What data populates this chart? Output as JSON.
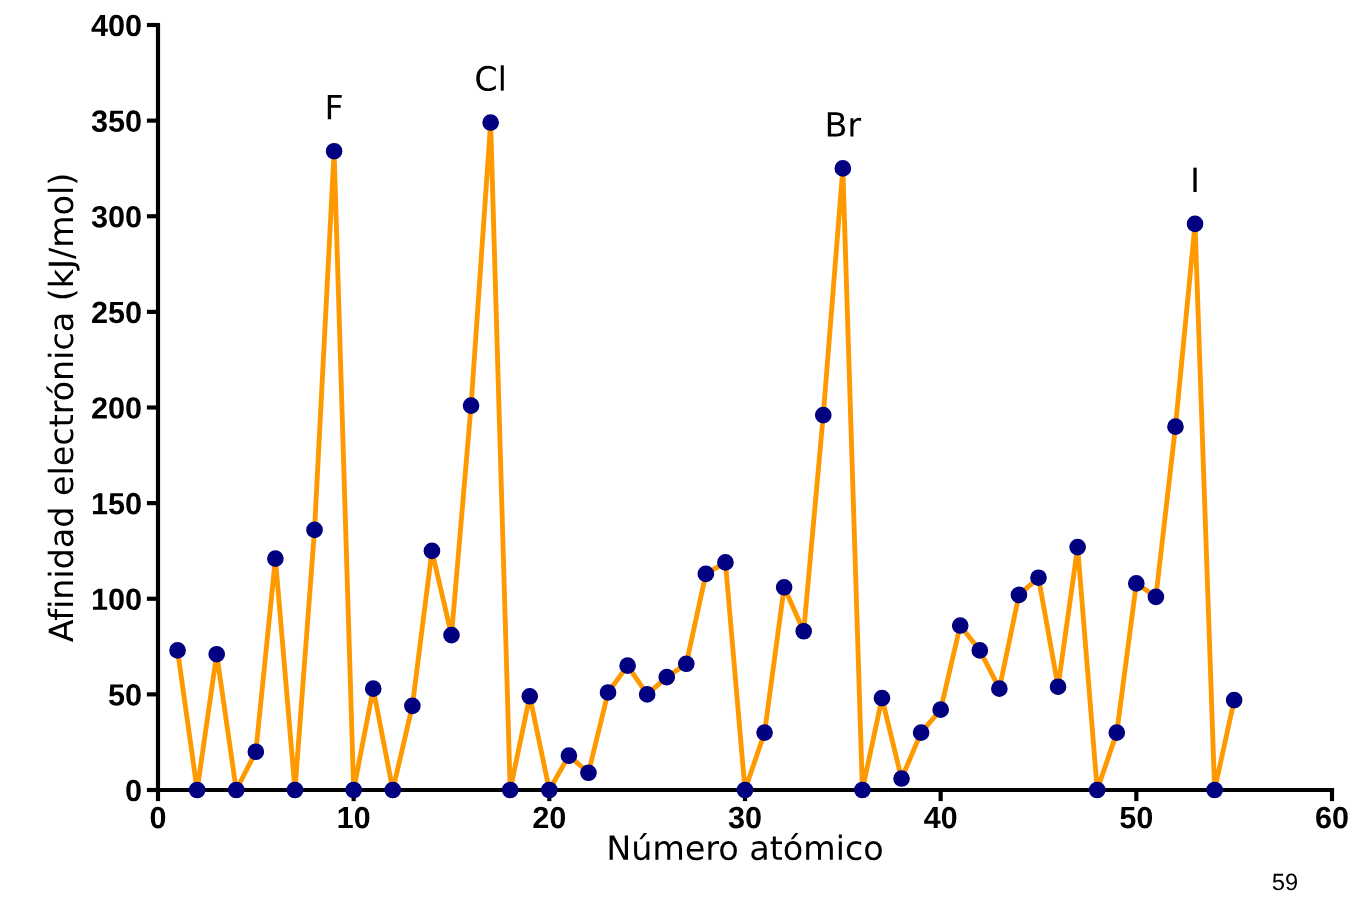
{
  "chart_data": {
    "type": "line",
    "xlabel": "Número atómico",
    "ylabel": "Afinidad electrónica (kJ/mol)",
    "x": [
      1,
      2,
      3,
      4,
      5,
      6,
      7,
      8,
      9,
      10,
      11,
      12,
      13,
      14,
      15,
      16,
      17,
      18,
      19,
      20,
      21,
      22,
      23,
      24,
      25,
      26,
      27,
      28,
      29,
      30,
      31,
      32,
      33,
      34,
      35,
      36,
      37,
      38,
      39,
      40,
      41,
      42,
      43,
      44,
      45,
      46,
      47,
      48,
      49,
      50,
      51,
      52,
      53,
      54,
      55
    ],
    "series": [
      {
        "color": "#ff9900",
        "colors": [
          "#000080",
          "#000080",
          "#000080",
          "#000080",
          "#000080",
          "#000080",
          "#000080",
          "#000080",
          "#000080",
          "#000080",
          "#000080",
          "#000080",
          "#000080",
          "#000080",
          "#000080",
          "#000080",
          "#000080",
          "#000080",
          "#000080",
          "#000080",
          "#000080",
          "#000080",
          "#000080",
          "#000080",
          "#000080",
          "#000080",
          "#000080",
          "#000080",
          "#000080",
          "#000080",
          "#000080",
          "#000080",
          "#000080",
          "#000080",
          "#000080",
          "#000080",
          "#000080",
          "#000080",
          "#000080",
          "#000080",
          "#000080",
          "#000080",
          "#000080",
          "#000080",
          "#000080",
          "#000080",
          "#000080",
          "#000080",
          "#000080",
          "#000080",
          "#000080",
          "#000080",
          "#000080",
          "#000080",
          "#000080"
        ],
        "values": [
          73,
          0,
          71,
          0,
          20,
          121,
          0,
          136,
          334,
          0,
          53,
          0,
          44,
          125,
          81,
          201,
          349,
          0,
          49,
          0,
          18,
          9,
          51,
          65,
          50,
          59,
          66,
          113,
          119,
          0,
          30,
          106,
          83,
          196,
          325,
          0,
          48,
          6,
          30,
          42,
          86,
          73,
          53,
          102,
          111,
          54,
          127,
          0,
          30,
          108,
          101,
          190,
          296,
          0,
          47
        ]
      }
    ],
    "xlim": [
      0,
      60
    ],
    "xticks": [
      0,
      10,
      20,
      30,
      40,
      50,
      60
    ],
    "ylim": [
      0,
      400
    ],
    "yticks": [
      0,
      50,
      100,
      150,
      200,
      250,
      300,
      350,
      400
    ],
    "grid": false,
    "legend": false,
    "marker": "circle",
    "line_style": "solid",
    "annotations": [
      {
        "text": "F",
        "x": 9,
        "y": 334
      },
      {
        "text": "Cl",
        "x": 17,
        "y": 349
      },
      {
        "text": "Br",
        "x": 35,
        "y": 325
      },
      {
        "text": "I",
        "x": 53,
        "y": 296
      },
      "59"
    ]
  }
}
